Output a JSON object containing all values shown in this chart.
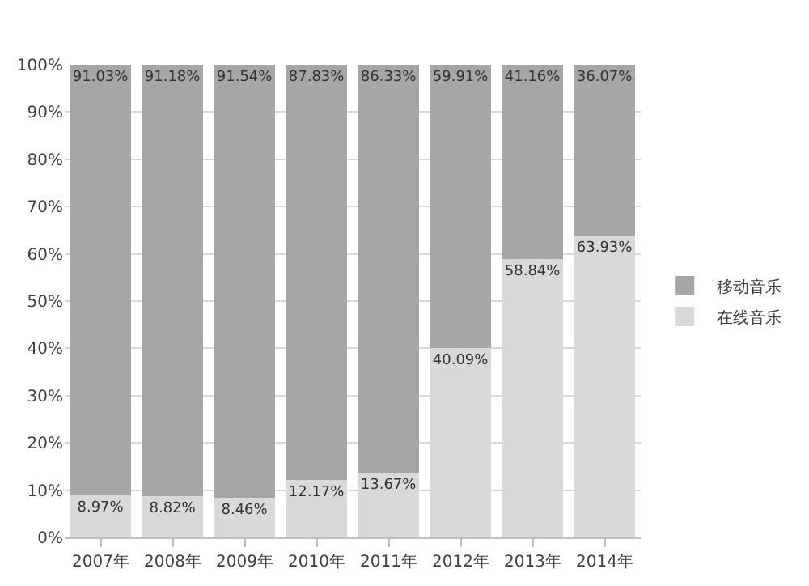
{
  "chart_data": {
    "type": "bar",
    "stacked": true,
    "categories": [
      "2007年",
      "2008年",
      "2009年",
      "2010年",
      "2011年",
      "2012年",
      "2013年",
      "2014年"
    ],
    "series": [
      {
        "name": "在线音乐",
        "color": "#d9d9d9",
        "values": [
          8.97,
          8.82,
          8.46,
          12.17,
          13.67,
          40.09,
          58.84,
          63.93
        ],
        "value_labels": [
          "8.97%",
          "8.82%",
          "8.46%",
          "12.17%",
          "13.67%",
          "40.09%",
          "58.84%",
          "63.93%"
        ]
      },
      {
        "name": "移动音乐",
        "color": "#a6a6a6",
        "values": [
          91.03,
          91.18,
          91.54,
          87.83,
          86.33,
          59.91,
          41.16,
          36.07
        ],
        "value_labels": [
          "91.03%",
          "91.18%",
          "91.54%",
          "87.83%",
          "86.33%",
          "59.91%",
          "41.16%",
          "36.07%"
        ]
      }
    ],
    "ylim": [
      0,
      100
    ],
    "yticks": [
      {
        "value": 0,
        "label": "0%"
      },
      {
        "value": 10,
        "label": "10%"
      },
      {
        "value": 20,
        "label": "20%"
      },
      {
        "value": 30,
        "label": "30%"
      },
      {
        "value": 40,
        "label": "40%"
      },
      {
        "value": 50,
        "label": "50%"
      },
      {
        "value": 60,
        "label": "60%"
      },
      {
        "value": 70,
        "label": "70%"
      },
      {
        "value": 80,
        "label": "80%"
      },
      {
        "value": 90,
        "label": "90%"
      },
      {
        "value": 100,
        "label": "100%"
      }
    ],
    "grid": "y",
    "legend": "right"
  }
}
